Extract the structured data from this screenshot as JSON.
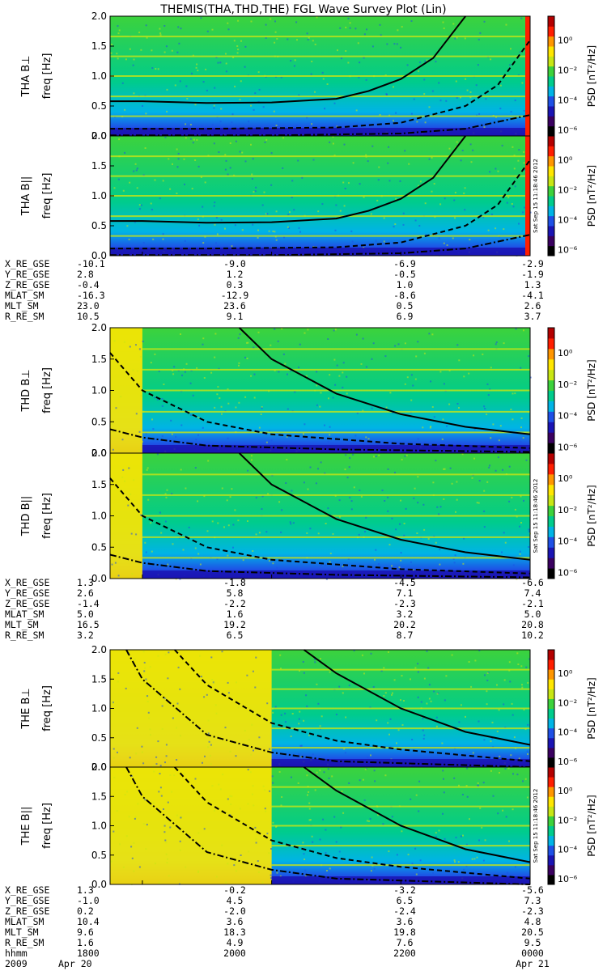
{
  "title": "THEMIS(THA,THD,THE) FGL Wave Survey Plot (Lin)",
  "stamp": "Sat Sep 15 11:18:46 2012",
  "colors": {
    "colormap": [
      "#000000",
      "#3a0060",
      "#1a14b4",
      "#1e50e6",
      "#00b4e6",
      "#00cc8c",
      "#3cd23c",
      "#c8e614",
      "#ffe600",
      "#ff9600",
      "#ff1e00",
      "#b40000"
    ]
  },
  "colorbar": {
    "label": "PSD [nT²/Hz]",
    "ticks": [
      "10⁰",
      "10⁻²",
      "10⁻⁴",
      "10⁻⁶"
    ]
  },
  "freq_ticks": [
    "0.0",
    "0.5",
    "1.0",
    "1.5",
    "2.0"
  ],
  "time_axis": {
    "row_label": "hhmm",
    "year_label": "2009",
    "ticks": [
      "1800",
      "2000",
      "2200",
      "0000"
    ],
    "start_date": "Apr 20",
    "end_date": "Apr 21"
  },
  "ephemeris": [
    {
      "labels": [
        "X_RE_GSE",
        "Y_RE_GSE",
        "Z_RE_GSE",
        "MLAT_SM",
        "MLT_SM",
        "R_RE_SM"
      ],
      "columns": [
        [
          "-10.1",
          "2.8",
          "-0.4",
          "-16.3",
          "23.0",
          "10.5"
        ],
        [
          "-9.0",
          "1.2",
          "0.3",
          "-12.9",
          "23.6",
          "9.1"
        ],
        [
          "-6.9",
          "-0.5",
          "1.0",
          "-8.6",
          "0.5",
          "6.9"
        ],
        [
          "-2.9",
          "-1.9",
          "1.3",
          "-4.1",
          "2.6",
          "3.7"
        ]
      ]
    },
    {
      "labels": [
        "X_RE_GSE",
        "Y_RE_GSE",
        "Z_RE_GSE",
        "MLAT_SM",
        "MLT_SM",
        "R_RE_SM"
      ],
      "columns": [
        [
          "1.3",
          "2.6",
          "-1.4",
          "5.0",
          "16.5",
          "3.2"
        ],
        [
          "-1.8",
          "5.8",
          "-2.2",
          "1.6",
          "19.2",
          "6.5"
        ],
        [
          "-4.5",
          "7.1",
          "-2.3",
          "3.2",
          "20.2",
          "8.7"
        ],
        [
          "-6.6",
          "7.4",
          "-2.1",
          "5.0",
          "20.8",
          "10.2"
        ]
      ]
    },
    {
      "labels": [
        "X_RE_GSE",
        "Y_RE_GSE",
        "Z_RE_GSE",
        "MLAT_SM",
        "MLT_SM",
        "R_RE_SM"
      ],
      "columns": [
        [
          "1.3",
          "-1.0",
          "0.2",
          "10.4",
          "9.6",
          "1.6"
        ],
        [
          "-0.2",
          "4.5",
          "-2.0",
          "3.6",
          "18.3",
          "4.9"
        ],
        [
          "-3.2",
          "6.5",
          "-2.4",
          "3.6",
          "19.8",
          "7.6"
        ],
        [
          "-5.6",
          "7.3",
          "-2.3",
          "4.8",
          "20.5",
          "9.5"
        ]
      ]
    }
  ],
  "chart_data": [
    {
      "type": "heatmap",
      "probe": "THA",
      "panels": [
        {
          "ylabel": "THA B⊥",
          "component": "perp"
        },
        {
          "ylabel": "THA B||",
          "component": "par"
        }
      ],
      "ylabel2": "freq [Hz]",
      "ylim": [
        0.0,
        2.0
      ],
      "x": [
        "1800",
        "2000",
        "2200",
        "0000"
      ],
      "data_start_fraction": 0.0,
      "data_coverage": "data from ~1730 UT to ~0000 UT; red saturation band near 0000",
      "harmonic_bands_hz": [
        0.33,
        0.66,
        1.0,
        1.33,
        1.66
      ],
      "series": [
        {
          "name": "solid",
          "x": [
            "1730",
            "1800",
            "1900",
            "2000",
            "2100",
            "2130",
            "2200",
            "2230",
            "2300"
          ],
          "y": [
            0.58,
            0.58,
            0.55,
            0.56,
            0.62,
            0.75,
            0.95,
            1.3,
            2.0
          ]
        },
        {
          "name": "dashed",
          "x": [
            "1730",
            "1900",
            "2100",
            "2200",
            "2300",
            "2330",
            "0000"
          ],
          "y": [
            0.12,
            0.12,
            0.14,
            0.22,
            0.5,
            0.85,
            1.6
          ]
        },
        {
          "name": "dash-dot",
          "x": [
            "1730",
            "2000",
            "2200",
            "2300",
            "0000"
          ],
          "y": [
            0.01,
            0.01,
            0.04,
            0.12,
            0.35
          ]
        }
      ]
    },
    {
      "type": "heatmap",
      "probe": "THD",
      "panels": [
        {
          "ylabel": "THD B⊥",
          "component": "perp"
        },
        {
          "ylabel": "THD B||",
          "component": "par"
        }
      ],
      "ylabel2": "freq [Hz]",
      "ylim": [
        0.0,
        2.0
      ],
      "x": [
        "1800",
        "2000",
        "2200",
        "0000"
      ],
      "data_coverage": "data from ~1730 UT; saturated region ~1730-1800",
      "harmonic_bands_hz": [
        0.33,
        0.66,
        1.0,
        1.33,
        1.66
      ],
      "series": [
        {
          "name": "solid",
          "x": [
            "1930",
            "2000",
            "2100",
            "2200",
            "2300",
            "0000"
          ],
          "y": [
            2.0,
            1.5,
            0.95,
            0.62,
            0.42,
            0.3
          ]
        },
        {
          "name": "dashed",
          "x": [
            "1730",
            "1800",
            "1900",
            "2000",
            "2200",
            "0000"
          ],
          "y": [
            1.6,
            1.0,
            0.5,
            0.3,
            0.15,
            0.08
          ]
        },
        {
          "name": "dash-dot",
          "x": [
            "1730",
            "1800",
            "1900",
            "2100",
            "0000"
          ],
          "y": [
            0.38,
            0.25,
            0.12,
            0.06,
            0.02
          ]
        }
      ]
    },
    {
      "type": "heatmap",
      "probe": "THE",
      "panels": [
        {
          "ylabel": "THE B⊥",
          "component": "perp"
        },
        {
          "ylabel": "THE B||",
          "component": "par"
        }
      ],
      "ylabel2": "freq [Hz]",
      "ylim": [
        0.0,
        2.0
      ],
      "x": [
        "1800",
        "2000",
        "2200",
        "0000"
      ],
      "data_coverage": "data from ~1730 UT; saturated region ~1730-2000",
      "harmonic_bands_hz": [
        0.33,
        0.66,
        1.0,
        1.33,
        1.66
      ],
      "series": [
        {
          "name": "solid",
          "x": [
            "2030",
            "2100",
            "2200",
            "2300",
            "0000"
          ],
          "y": [
            2.0,
            1.6,
            1.0,
            0.6,
            0.38
          ]
        },
        {
          "name": "dashed",
          "x": [
            "1830",
            "1900",
            "2000",
            "2100",
            "2200",
            "0000"
          ],
          "y": [
            2.0,
            1.4,
            0.75,
            0.45,
            0.3,
            0.1
          ]
        },
        {
          "name": "dash-dot",
          "x": [
            "1745",
            "1800",
            "1900",
            "2000",
            "2100",
            "0000"
          ],
          "y": [
            2.0,
            1.5,
            0.55,
            0.25,
            0.1,
            0.0
          ]
        }
      ]
    }
  ]
}
